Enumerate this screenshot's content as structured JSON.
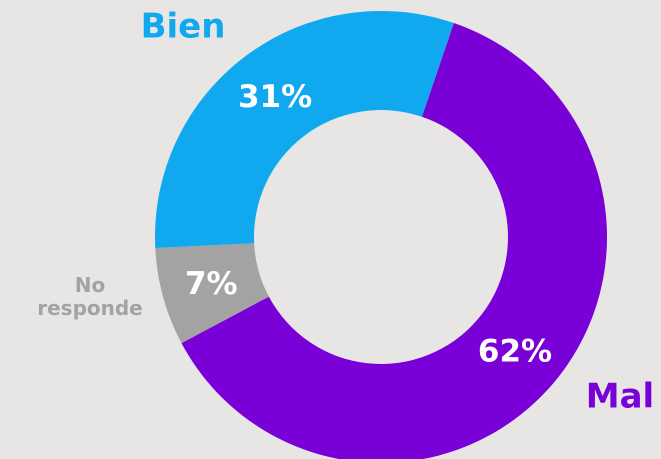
{
  "chart_data": {
    "type": "donut",
    "categories": [
      "Mal",
      "No responde",
      "Bien"
    ],
    "values": [
      62,
      7,
      31
    ],
    "value_labels": [
      "62%",
      "7%",
      "31%"
    ],
    "colors": [
      "#7a00d8",
      "#a3a3a3",
      "#10a9ef"
    ],
    "label_colors": [
      "#7a00d8",
      "#a3a3a3",
      "#10a9ef"
    ]
  }
}
